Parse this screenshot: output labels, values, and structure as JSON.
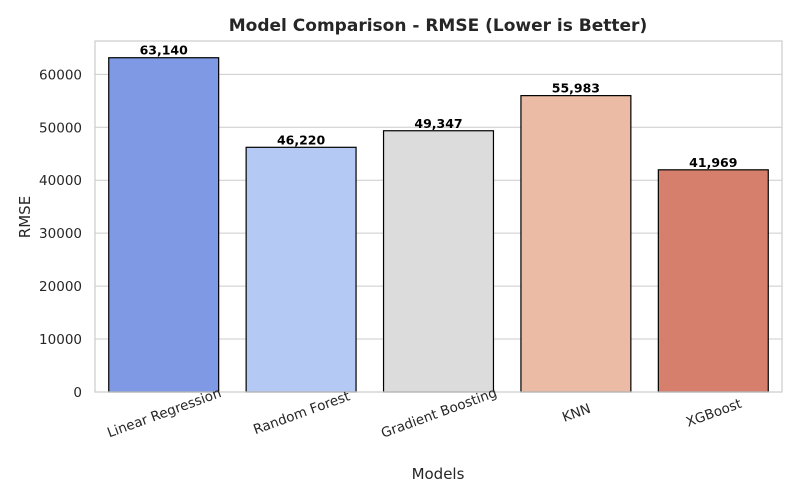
{
  "chart_data": {
    "type": "bar",
    "title": "Model Comparison - RMSE (Lower is Better)",
    "xlabel": "Models",
    "ylabel": "RMSE",
    "categories": [
      "Linear Regression",
      "Random Forest",
      "Gradient Boosting",
      "KNN",
      "XGBoost"
    ],
    "values": [
      63140,
      46220,
      49347,
      55983,
      41969
    ],
    "value_labels": [
      "63,140",
      "46,220",
      "49,347",
      "55,983",
      "41,969"
    ],
    "colors": [
      "#7f99e5",
      "#b4c9f3",
      "#dcdcdc",
      "#ecbba5",
      "#d67f6d"
    ],
    "ylim": [
      0,
      66300
    ],
    "yticks": [
      0,
      10000,
      20000,
      30000,
      40000,
      50000,
      60000
    ],
    "ytick_labels": [
      "0",
      "10000",
      "20000",
      "30000",
      "40000",
      "50000",
      "60000"
    ],
    "grid": true,
    "legend": "none"
  }
}
